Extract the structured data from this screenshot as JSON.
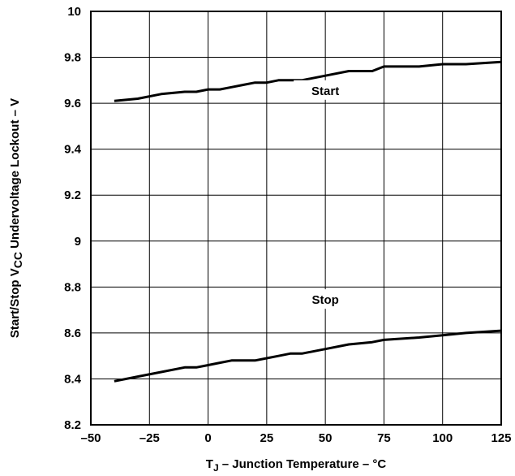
{
  "chart_data": {
    "type": "line",
    "xlabel": {
      "main": "T",
      "sub": "J",
      "rest": " – Junction Temperature – °C"
    },
    "ylabel": {
      "pre": "Start/Stop V",
      "sub": "CC",
      "post": " Undervoltage Lockout – V"
    },
    "xlim": [
      -50,
      125
    ],
    "ylim": [
      8.2,
      10
    ],
    "xticks": [
      -50,
      -25,
      0,
      25,
      50,
      75,
      100,
      125
    ],
    "xtick_labels": [
      "–50",
      "–25",
      "0",
      "25",
      "50",
      "75",
      "100",
      "125"
    ],
    "yticks": [
      8.2,
      8.4,
      8.6,
      8.8,
      9,
      9.2,
      9.4,
      9.6,
      9.8,
      10
    ],
    "ytick_labels": [
      "8.2",
      "8.4",
      "8.6",
      "8.8",
      "9",
      "9.2",
      "9.4",
      "9.6",
      "9.8",
      "10"
    ],
    "grid": true,
    "series": [
      {
        "name": "Start",
        "x": [
          -40,
          -30,
          -20,
          -10,
          -5,
          0,
          5,
          10,
          15,
          20,
          25,
          30,
          35,
          40,
          50,
          60,
          70,
          75,
          90,
          100,
          110,
          125
        ],
        "y": [
          9.61,
          9.62,
          9.64,
          9.65,
          9.65,
          9.66,
          9.66,
          9.67,
          9.68,
          9.69,
          9.69,
          9.7,
          9.7,
          9.7,
          9.72,
          9.74,
          9.74,
          9.76,
          9.76,
          9.77,
          9.77,
          9.78
        ]
      },
      {
        "name": "Stop",
        "x": [
          -40,
          -30,
          -20,
          -10,
          -5,
          0,
          5,
          10,
          15,
          20,
          25,
          30,
          35,
          40,
          50,
          60,
          70,
          75,
          90,
          100,
          110,
          125
        ],
        "y": [
          8.39,
          8.41,
          8.43,
          8.45,
          8.45,
          8.46,
          8.47,
          8.48,
          8.48,
          8.48,
          8.49,
          8.5,
          8.51,
          8.51,
          8.53,
          8.55,
          8.56,
          8.57,
          8.58,
          8.59,
          8.6,
          8.61
        ]
      }
    ],
    "annotations": [
      {
        "text": "Start",
        "x": 50,
        "y": 9.64,
        "series": 0
      },
      {
        "text": "Stop",
        "x": 50,
        "y": 8.73,
        "series": 1
      }
    ]
  }
}
